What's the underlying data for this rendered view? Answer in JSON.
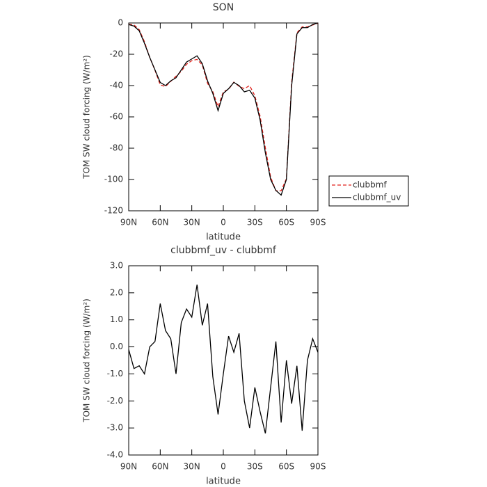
{
  "chart_data": [
    {
      "type": "line",
      "title": "SON",
      "xlabel": "latitude",
      "ylabel": "TOM SW cloud forcing (W/m²)",
      "x": [
        90,
        85,
        80,
        75,
        70,
        65,
        60,
        55,
        50,
        45,
        40,
        35,
        30,
        25,
        20,
        15,
        10,
        5,
        0,
        -5,
        -10,
        -15,
        -20,
        -25,
        -30,
        -35,
        -40,
        -45,
        -50,
        -55,
        -60,
        -65,
        -70,
        -75,
        -80,
        -85,
        -90
      ],
      "series": [
        {
          "name": "clubbmf",
          "color": "#e0201b",
          "style": "dashed",
          "values": [
            -0.9,
            -1.2,
            -4.3,
            -12,
            -22,
            -30.2,
            -39.6,
            -40.6,
            -37.3,
            -34,
            -30.9,
            -26.4,
            -24.1,
            -23.3,
            -26.8,
            -38.6,
            -43.9,
            -53.5,
            -44,
            -42.4,
            -37.8,
            -40.5,
            -42,
            -40,
            -46.5,
            -59.6,
            -79.8,
            -98.5,
            -107.2,
            -107.2,
            -99.5,
            -37.9,
            -6.3,
            -2.5,
            -2.5,
            -1.3,
            -0.2
          ]
        },
        {
          "name": "clubbmf_uv",
          "color": "#000000",
          "style": "solid",
          "values": [
            -1,
            -2,
            -5,
            -13,
            -22,
            -30,
            -38,
            -40,
            -37,
            -35,
            -30,
            -25,
            -23,
            -21,
            -26,
            -37,
            -45,
            -56,
            -45,
            -42,
            -38,
            -40,
            -44,
            -43,
            -48,
            -62,
            -83,
            -100,
            -107,
            -110,
            -100,
            -40,
            -7,
            -3,
            -3,
            -1,
            0
          ]
        }
      ],
      "xlim": [
        90,
        -90
      ],
      "xticks": [
        {
          "value": 90,
          "label": "90N"
        },
        {
          "value": 60,
          "label": "60N"
        },
        {
          "value": 30,
          "label": "30N"
        },
        0,
        {
          "value": -30,
          "label": "30S"
        },
        {
          "value": -60,
          "label": "60S"
        },
        {
          "value": -90,
          "label": "90S"
        }
      ],
      "ylim": [
        -120,
        0
      ],
      "yticks": [
        0,
        -20,
        -40,
        -60,
        -80,
        -100,
        -120
      ],
      "legend": "right"
    },
    {
      "type": "line",
      "title": "clubbmf_uv - clubbmf",
      "xlabel": "latitude",
      "ylabel": "TOM SW cloud forcing (W/m²)",
      "x": [
        90,
        85,
        80,
        75,
        70,
        65,
        60,
        55,
        50,
        45,
        40,
        35,
        30,
        25,
        20,
        15,
        10,
        5,
        0,
        -5,
        -10,
        -15,
        -20,
        -25,
        -30,
        -35,
        -40,
        -45,
        -50,
        -55,
        -60,
        -65,
        -70,
        -75,
        -80,
        -85,
        -90
      ],
      "color": "#000000",
      "values": [
        -0.1,
        -0.8,
        -0.7,
        -1.0,
        0.0,
        0.2,
        1.6,
        0.6,
        0.3,
        -1.0,
        0.9,
        1.4,
        1.1,
        2.3,
        0.8,
        1.6,
        -1.1,
        -2.5,
        -1.0,
        0.4,
        -0.2,
        0.5,
        -2.0,
        -3.0,
        -1.5,
        -2.4,
        -3.2,
        -1.5,
        0.2,
        -2.8,
        -0.5,
        -2.1,
        -0.7,
        -3.1,
        -0.5,
        0.3,
        -0.2
      ],
      "xlim": [
        90,
        -90
      ],
      "xticks": [
        {
          "value": 90,
          "label": "90N"
        },
        {
          "value": 60,
          "label": "60N"
        },
        {
          "value": 30,
          "label": "30N"
        },
        0,
        {
          "value": -30,
          "label": "30S"
        },
        {
          "value": -60,
          "label": "60S"
        },
        {
          "value": -90,
          "label": "90S"
        }
      ],
      "ylim": [
        -4,
        3
      ],
      "yticks": [
        {
          "value": 3,
          "label": "3.0"
        },
        {
          "value": 2,
          "label": "2.0"
        },
        {
          "value": 1,
          "label": "1.0"
        },
        {
          "value": 0,
          "label": "0.0"
        },
        {
          "value": -1,
          "label": "-1.0"
        },
        {
          "value": -2,
          "label": "-2.0"
        },
        {
          "value": -3,
          "label": "-3.0"
        },
        {
          "value": -4,
          "label": "-4.0"
        }
      ]
    }
  ]
}
